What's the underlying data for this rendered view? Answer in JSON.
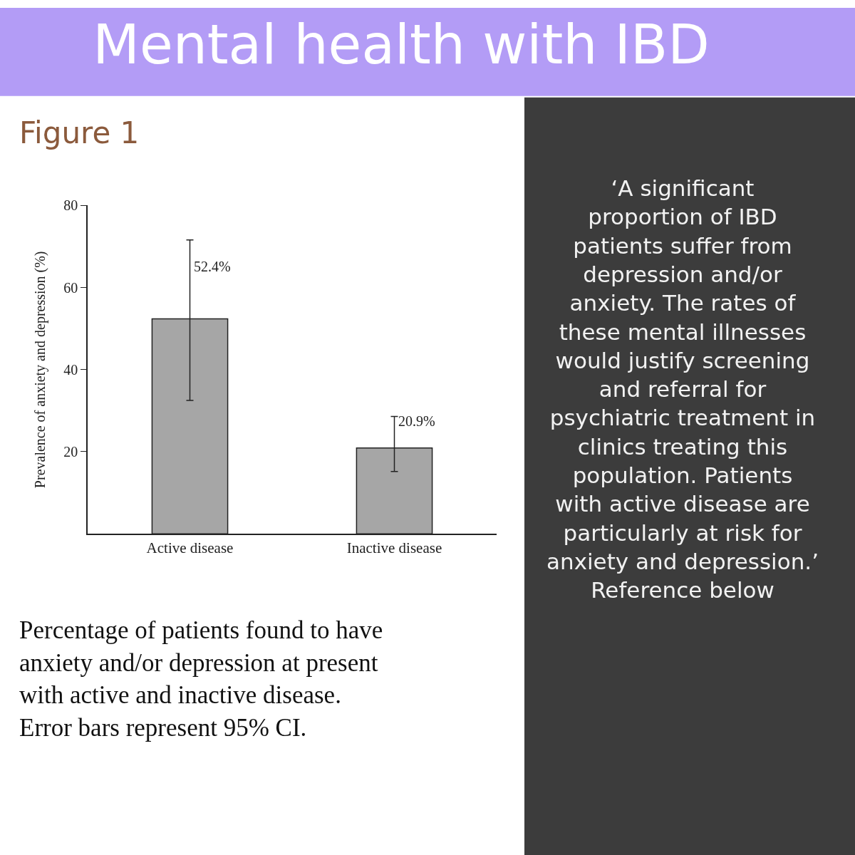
{
  "chart_data": {
    "type": "bar",
    "title": "Mental health with IBD",
    "subtitle": "Figure 1",
    "ylabel": "Prevalence of anxiety and depression (%)",
    "categories": [
      "Active disease",
      "Inactive disease"
    ],
    "values": [
      52.4,
      20.9
    ],
    "color": "#a6a6a6",
    "errors": [
      [
        32.5,
        71.6
      ],
      [
        15.2,
        28.6
      ]
    ],
    "value_labels": [
      "52.4%",
      "20.9%"
    ],
    "ylim": [
      0,
      80
    ],
    "yticks": [
      20,
      40,
      60,
      80
    ],
    "legend": false,
    "annotations": [
      "Percentage of patients found to have anxiety and/or depression at present with active and inactive disease. Error bars represent 95% CI.",
      "‘A significant proportion of IBD patients suffer from depression and/or anxiety. The rates of these mental illnesses would justify screening and referral for psychiatric treatment in clinics treating this population. Patients with active disease are particularly at risk for anxiety and depression.’ Reference below"
    ]
  }
}
